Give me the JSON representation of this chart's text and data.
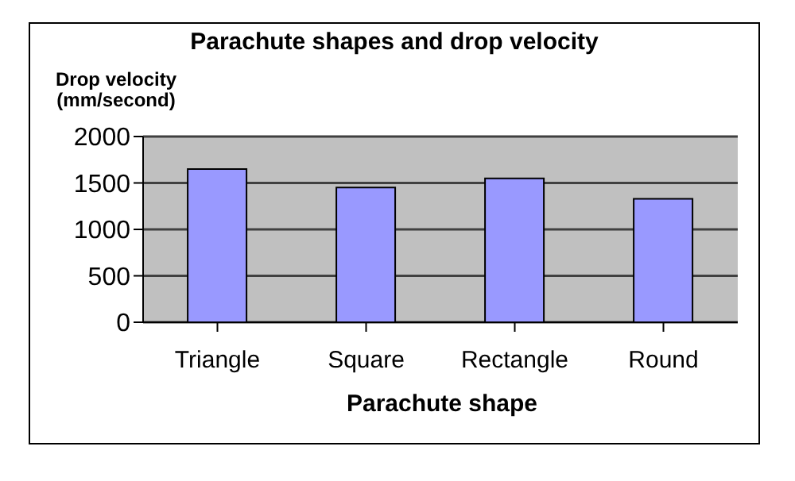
{
  "chart_data": {
    "type": "bar",
    "title": "Parachute shapes and drop velocity",
    "xlabel": "Parachute shape",
    "ylabel": "Drop velocity (mm/second)",
    "categories": [
      "Triangle",
      "Square",
      "Rectangle",
      "Round"
    ],
    "values": [
      1650,
      1450,
      1550,
      1330
    ],
    "color": "#9999ff",
    "ylim": [
      0,
      2000
    ],
    "yticks": [
      0,
      500,
      1000,
      1500,
      2000
    ],
    "grid": "y",
    "legend": false
  }
}
